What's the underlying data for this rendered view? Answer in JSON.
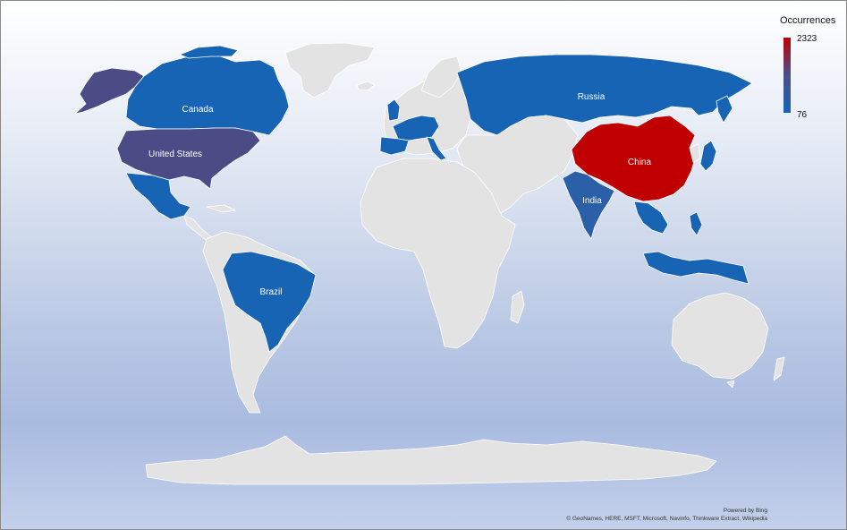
{
  "legend": {
    "title": "Occurrences",
    "max_label": "2323",
    "min_label": "76",
    "color_max": "#c00000",
    "color_mid": "#4a4f8c",
    "color_min": "#1763b4"
  },
  "highlighted_countries": [
    {
      "name": "China",
      "label": "China",
      "color": "#c00000",
      "level": "highest"
    },
    {
      "name": "United States",
      "label": "United States",
      "color": "#4b4b85",
      "level": "high"
    },
    {
      "name": "Russia",
      "label": "Russia",
      "color": "#1763b4",
      "level": "low"
    },
    {
      "name": "Canada",
      "label": "Canada",
      "color": "#1763b4",
      "level": "low"
    },
    {
      "name": "Brazil",
      "label": "Brazil",
      "color": "#1763b4",
      "level": "low"
    },
    {
      "name": "India",
      "label": "India",
      "color": "#2b5fa8",
      "level": "low"
    }
  ],
  "attribution": {
    "powered_by": "Powered by Bing",
    "sources": "© GeoNames, HERE, MSFT, Microsoft, Navinfo, Thinkware Extract, Wikipedia"
  }
}
